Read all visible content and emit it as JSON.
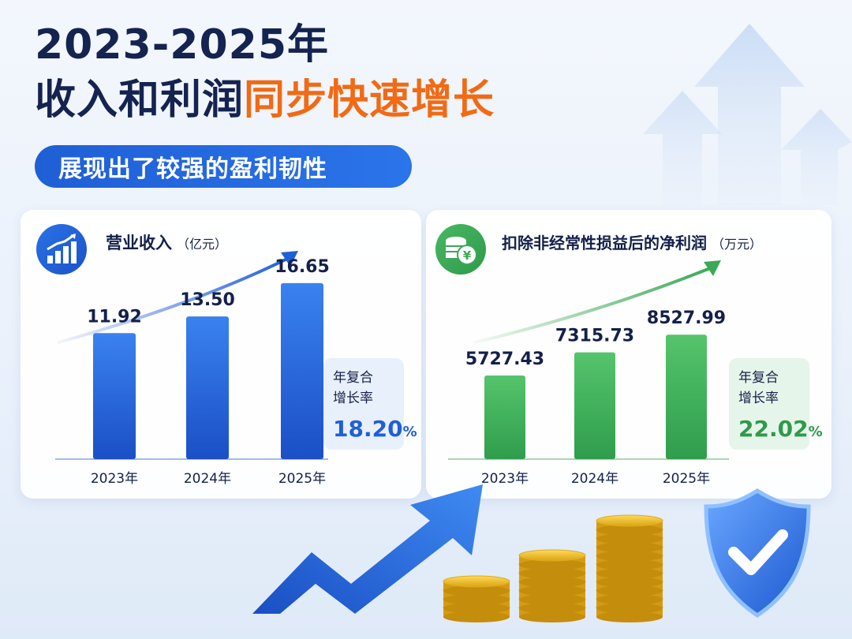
{
  "title_line1": "2023-2025年",
  "title_line2_dark": "收入和利润",
  "title_line2_accent": "同步快速增长",
  "subtitle": "展现出了较强的盈利韧性",
  "colors": {
    "title": "#14234f",
    "accent": "#f26a14",
    "revenue_bar": "#1f5fd6",
    "profit_bar": "#3ba955"
  },
  "revenue_panel": {
    "icon": "bar-chart-growth-icon",
    "title": "营业收入",
    "unit": "（亿元）",
    "cagr_label": "年复合增长率",
    "cagr_value": "18.20",
    "cagr_pct": "%"
  },
  "profit_panel": {
    "icon": "coins-yuan-icon",
    "title": "扣除非经常性损益后的净利润",
    "unit": "（万元）",
    "cagr_label": "年复合增长率",
    "cagr_value": "22.02",
    "cagr_pct": "%"
  },
  "decorations": [
    "growth-zigzag-arrow-icon",
    "gold-coin-stacks-icon",
    "shield-check-icon",
    "background-up-arrows-icon"
  ],
  "chart_data": [
    {
      "type": "bar",
      "title": "营业收入（亿元）",
      "categories": [
        "2023年",
        "2024年",
        "2025年"
      ],
      "values": [
        11.92,
        13.5,
        16.65
      ],
      "value_labels": [
        "11.92",
        "13.50",
        "16.65"
      ],
      "trend_arrow": true,
      "grid": false
    },
    {
      "type": "bar",
      "title": "扣除非经常性损益后的净利润（万元）",
      "categories": [
        "2023年",
        "2024年",
        "2025年"
      ],
      "values": [
        5727.43,
        7315.73,
        8527.99
      ],
      "value_labels": [
        "5727.43",
        "7315.73",
        "8527.99"
      ],
      "trend_arrow": true,
      "grid": false
    }
  ]
}
